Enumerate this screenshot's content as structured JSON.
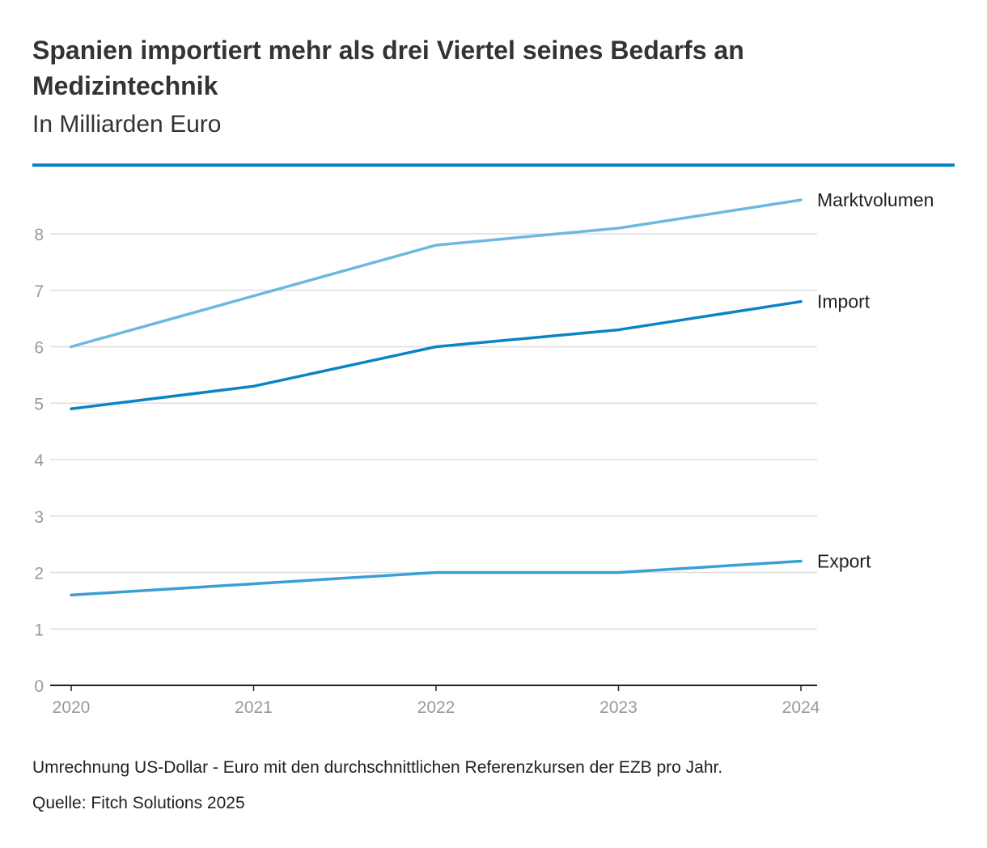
{
  "header": {
    "title": "Spanien importiert mehr als drei Viertel seines Bedarfs an Medizintechnik",
    "subtitle": "In Milliarden Euro"
  },
  "footer": {
    "note": "Umrechnung US-Dollar - Euro mit den durchschnittlichen Referenzkursen der EZB pro Jahr.",
    "source": "Quelle: Fitch Solutions 2025"
  },
  "colors": {
    "rule": "#0a84c6",
    "grid": "#dddddd",
    "axis": "#222222",
    "tick": "#999999"
  },
  "chart_data": {
    "type": "line",
    "title": "Spanien importiert mehr als drei Viertel seines Bedarfs an Medizintechnik",
    "subtitle": "In Milliarden Euro",
    "xlabel": "",
    "ylabel": "",
    "categories": [
      "2020",
      "2021",
      "2022",
      "2023",
      "2024"
    ],
    "ylim": [
      0,
      8
    ],
    "yticks": [
      "0",
      "1",
      "2",
      "3",
      "4",
      "5",
      "6",
      "7",
      "8"
    ],
    "grid": true,
    "legend": "direct labels at line ends (right)",
    "series": [
      {
        "name": "Marktvolumen",
        "values": [
          6.0,
          6.9,
          7.8,
          8.1,
          8.6
        ],
        "color": "#6cb9e0"
      },
      {
        "name": "Import",
        "values": [
          4.9,
          5.3,
          6.0,
          6.3,
          6.8
        ],
        "color": "#0a84c6"
      },
      {
        "name": "Export",
        "values": [
          1.6,
          1.8,
          2.0,
          2.0,
          2.2
        ],
        "color": "#3a9fd6"
      }
    ]
  }
}
